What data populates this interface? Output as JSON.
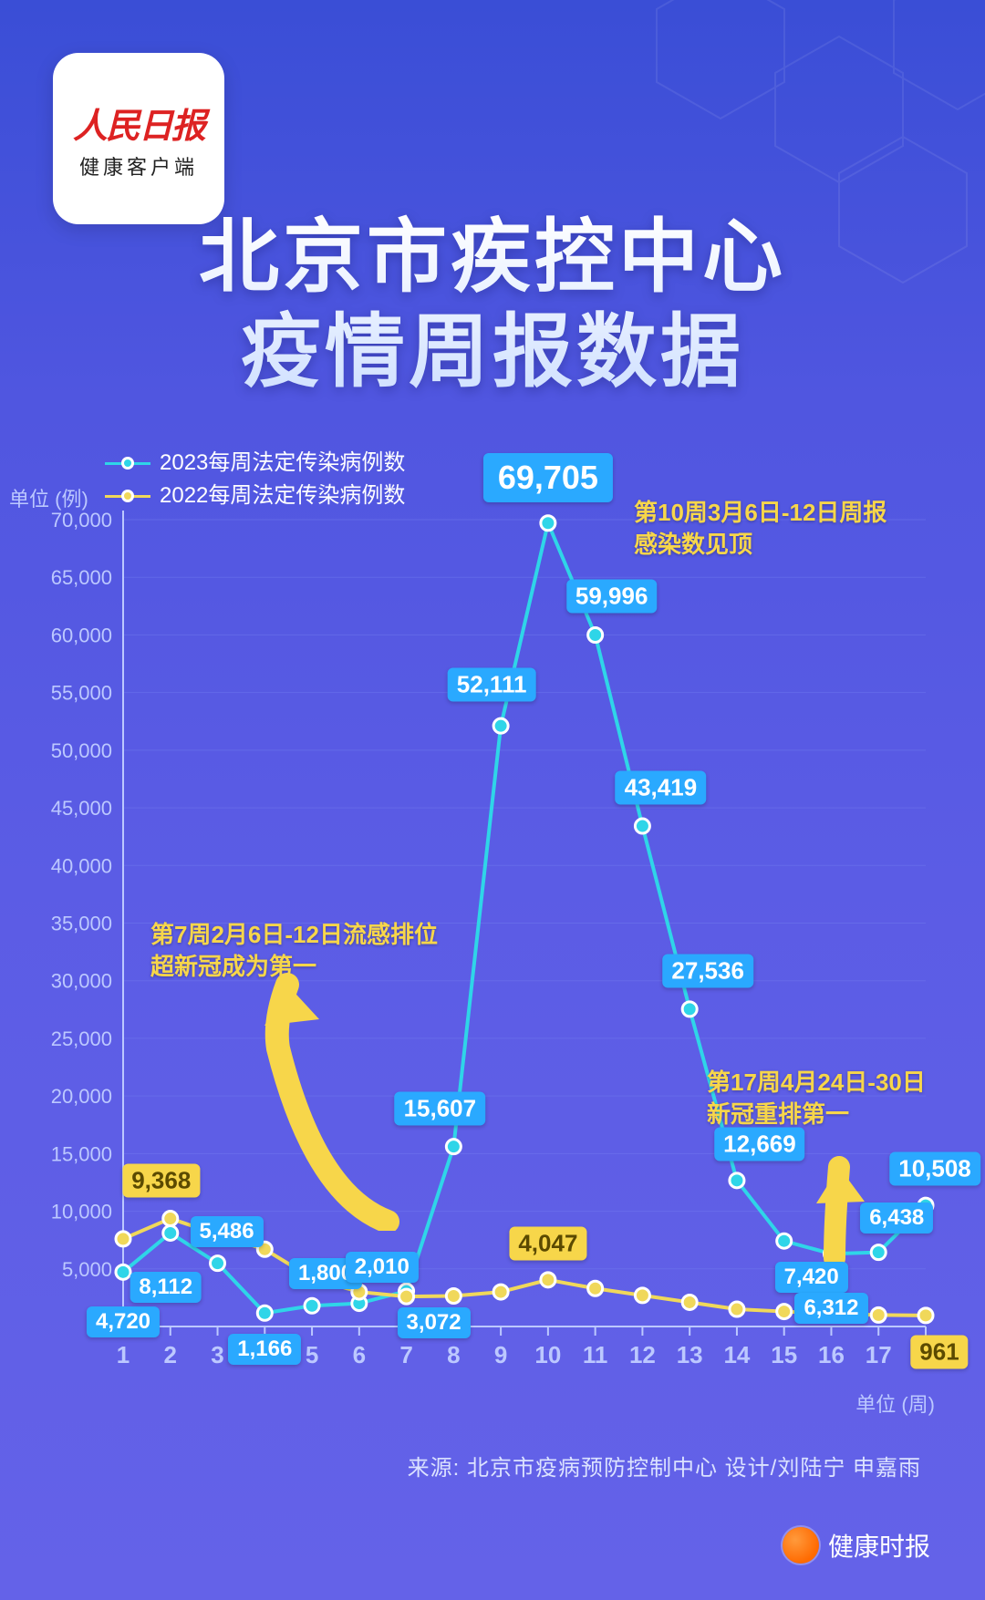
{
  "logo": {
    "main": "人民日报",
    "sub": "健康客户端"
  },
  "title_line1": "北京市疾控中心",
  "title_line2": "疫情周报数据",
  "legend": {
    "series_2023": "2023每周法定传染病例数",
    "series_2022": "2022每周法定传染病例数"
  },
  "y_unit": "单位 (例)",
  "x_unit": "单位 (周)",
  "source": "来源: 北京市疫病预防控制中心   设计/刘陆宁 申嘉雨",
  "footer_brand": "健康时报",
  "annotations": {
    "peak": {
      "line1": "第10周3月6日-12日周报",
      "line2": "感染数见顶"
    },
    "week7": {
      "line1": "第7周2月6日-12日流感排位",
      "line2": "超新冠成为第一"
    },
    "week17": {
      "line1": "第17周4月24日-30日",
      "line2": "新冠重排第一"
    }
  },
  "chart": {
    "type": "line",
    "background_color": "transparent",
    "grid_color": "#7c86f0",
    "grid_opacity": 0.35,
    "xlim": [
      1,
      18
    ],
    "ylim": [
      0,
      70000
    ],
    "ytick_step": 5000,
    "yticks": [
      0,
      5000,
      10000,
      15000,
      20000,
      25000,
      30000,
      35000,
      40000,
      45000,
      50000,
      55000,
      60000,
      65000,
      70000
    ],
    "ytick_labels": [
      "0",
      "5,000",
      "10,000",
      "15,000",
      "20,000",
      "25,000",
      "30,000",
      "35,000",
      "40,000",
      "45,000",
      "50,000",
      "55,000",
      "60,000",
      "65,000",
      "70,000"
    ],
    "xticks": [
      1,
      2,
      3,
      4,
      5,
      6,
      7,
      8,
      9,
      10,
      11,
      12,
      13,
      14,
      15,
      16,
      17,
      18
    ],
    "tick_fontsize": 22,
    "tick_color": "#bcc8ff",
    "title_fontsize": 88,
    "legend_fontsize": 24,
    "line_width": 4,
    "marker_radius": 8,
    "marker_stroke": "#ffffff",
    "marker_stroke_width": 3,
    "series": [
      {
        "name": "2023",
        "color": "#2fd5e8",
        "marker_fill": "#2fd5e8",
        "values": [
          4720,
          8112,
          5486,
          1166,
          1800,
          2010,
          3072,
          15607,
          52111,
          69705,
          59996,
          43419,
          27536,
          12669,
          7420,
          6312,
          6438,
          10508
        ],
        "labels": [
          "4,720",
          "8,112",
          "5,486",
          "1,166",
          "1,800",
          "2,010",
          "3,072",
          "15,607",
          "52,111",
          "69,705",
          "59,996",
          "43,419",
          "27,536",
          "12,669",
          "7,420",
          "6,312",
          "6,438",
          "10,508"
        ]
      },
      {
        "name": "2022",
        "color": "#f0d85a",
        "marker_fill": "#f0d85a",
        "values": [
          7600,
          9368,
          8000,
          6700,
          4200,
          3000,
          2600,
          2650,
          3000,
          4047,
          3300,
          2700,
          2100,
          1500,
          1300,
          1100,
          1000,
          961
        ],
        "labels": [
          null,
          "9,368",
          null,
          null,
          null,
          null,
          null,
          null,
          null,
          "4,047",
          null,
          null,
          null,
          null,
          null,
          null,
          null,
          "961"
        ]
      }
    ],
    "label_box_color_blue": "#2aa9ff",
    "label_box_color_yellow": "#f7d64a",
    "arrow_color": "#f7d64a"
  }
}
